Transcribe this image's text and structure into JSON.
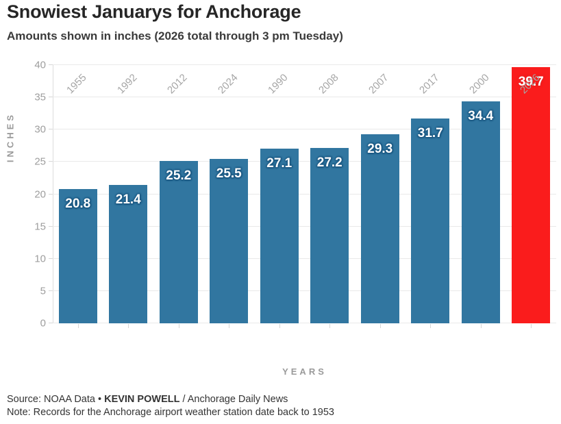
{
  "header": {
    "title": "Snowiest Januarys for Anchorage",
    "subtitle": "Amounts shown in inches (2026 total through 3 pm Tuesday)"
  },
  "chart_data": {
    "type": "bar",
    "title": "Snowiest Januarys for Anchorage",
    "subtitle": "Amounts shown in inches (2026 total through 3 pm Tuesday)",
    "categories": [
      "1955",
      "1992",
      "2012",
      "2024",
      "1990",
      "2008",
      "2007",
      "2017",
      "2000",
      "2026"
    ],
    "values": [
      20.8,
      21.4,
      25.2,
      25.5,
      27.1,
      27.2,
      29.3,
      31.7,
      34.4,
      39.7
    ],
    "value_labels": [
      "20.8",
      "21.4",
      "25.2",
      "25.5",
      "27.1",
      "27.2",
      "29.3",
      "31.7",
      "34.4",
      "39.7"
    ],
    "highlight_category": "2026",
    "xlabel": "YEARS",
    "ylabel": "INCHES",
    "ylim": [
      0,
      40
    ],
    "yticks": [
      0,
      5,
      10,
      15,
      20,
      25,
      30,
      35,
      40
    ],
    "grid": true,
    "legend": "none",
    "bar_color": "#3176a0",
    "highlight_color": "#fa1c1c",
    "value_label_color": "#ffffff"
  },
  "footer": {
    "source_prefix": "Source: NOAA Data • ",
    "source_author": "KEVIN POWELL",
    "source_suffix": " / Anchorage Daily News",
    "note": "Note: Records for the Anchorage airport weather station date back to 1953"
  }
}
